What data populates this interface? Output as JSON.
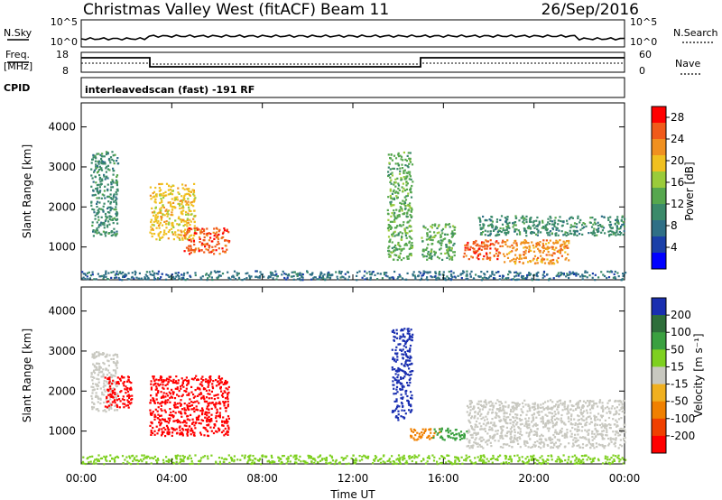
{
  "header": {
    "station": "Christmas Valley West (fitACF)",
    "beam": "Beam 11",
    "date": "26/Sep/2016"
  },
  "panels": {
    "nsky_label": "N.Sky",
    "nsky_ticks": [
      "10^5",
      "10^0"
    ],
    "nsearch_label": "N.Search",
    "nsearch_ticks": [
      "10^5",
      "10^0"
    ],
    "freq_label": "Freq.",
    "freq_unit": "[MHz]",
    "freq_ticks": [
      "18",
      "8"
    ],
    "nave_label": "Nave",
    "nave_ticks": [
      "60",
      "0"
    ],
    "cpid_label": "CPID",
    "cpid_text": "interleavedscan (fast) -191 RF"
  },
  "chart_data": [
    {
      "type": "heatmap",
      "title": "",
      "ylabel": "Slant Range [km]",
      "xlabel": "",
      "ylim": [
        180,
        4600
      ],
      "yticks": [
        "1000",
        "2000",
        "3000",
        "4000"
      ],
      "colorbar": {
        "label": "Power [dB]",
        "ticks": [
          "4",
          "8",
          "12",
          "16",
          "20",
          "24",
          "28"
        ],
        "range": [
          0,
          30
        ],
        "colors": [
          "#0000ff",
          "#1a3fa8",
          "#2f6f86",
          "#3b8a6a",
          "#56a74e",
          "#9acb3a",
          "#f0c020",
          "#f09020",
          "#f05a1a",
          "#ff0000"
        ]
      },
      "regions": [
        {
          "t0": 0.0,
          "t1": 24.0,
          "r0": 200,
          "r1": 420,
          "level": 8
        },
        {
          "t0": 0.4,
          "t1": 1.6,
          "r0": 1300,
          "r1": 3400,
          "level": 10
        },
        {
          "t0": 3.0,
          "t1": 5.0,
          "r0": 1200,
          "r1": 2600,
          "level": 20
        },
        {
          "t0": 4.5,
          "t1": 6.5,
          "r0": 850,
          "r1": 1500,
          "level": 24
        },
        {
          "t0": 13.5,
          "t1": 14.6,
          "r0": 700,
          "r1": 3400,
          "level": 14
        },
        {
          "t0": 15.0,
          "t1": 16.5,
          "r0": 700,
          "r1": 1600,
          "level": 12
        },
        {
          "t0": 16.8,
          "t1": 18.5,
          "r0": 700,
          "r1": 1200,
          "level": 24
        },
        {
          "t0": 17.5,
          "t1": 24.0,
          "r0": 1300,
          "r1": 1800,
          "level": 10
        },
        {
          "t0": 18.5,
          "t1": 21.5,
          "r0": 600,
          "r1": 1200,
          "level": 22
        }
      ]
    },
    {
      "type": "heatmap",
      "title": "",
      "ylabel": "Slant Range [km]",
      "xlabel": "Time UT",
      "ylim": [
        180,
        4600
      ],
      "yticks": [
        "1000",
        "2000",
        "3000",
        "4000"
      ],
      "xticks": [
        "00:00",
        "04:00",
        "08:00",
        "12:00",
        "16:00",
        "20:00",
        "00:00"
      ],
      "colorbar": {
        "label": "Velocity [m s⁻¹]",
        "ticks": [
          "200",
          "100",
          "50",
          "15",
          "-15",
          "-50",
          "-100",
          "-200"
        ],
        "colors": [
          "#1a2fb0",
          "#2e6e3a",
          "#3aa040",
          "#7ed020",
          "#c8c8c0",
          "#f0b020",
          "#f08000",
          "#f04000",
          "#ff0000"
        ]
      },
      "regions": [
        {
          "t0": 0.0,
          "t1": 24.0,
          "r0": 200,
          "r1": 420,
          "vel": 20
        },
        {
          "t0": 0.4,
          "t1": 1.6,
          "r0": 1500,
          "r1": 3000,
          "vel": 0
        },
        {
          "t0": 1.0,
          "t1": 2.2,
          "r0": 1600,
          "r1": 2400,
          "vel": -220
        },
        {
          "t0": 3.0,
          "t1": 6.5,
          "r0": 900,
          "r1": 2400,
          "vel": -220
        },
        {
          "t0": 13.7,
          "t1": 14.6,
          "r0": 1300,
          "r1": 3600,
          "vel": 220
        },
        {
          "t0": 14.5,
          "t1": 15.8,
          "r0": 800,
          "r1": 1100,
          "vel": -60
        },
        {
          "t0": 15.5,
          "t1": 17.0,
          "r0": 800,
          "r1": 1100,
          "vel": 60
        },
        {
          "t0": 17.0,
          "t1": 24.0,
          "r0": 600,
          "r1": 1800,
          "vel": 0
        }
      ]
    }
  ]
}
